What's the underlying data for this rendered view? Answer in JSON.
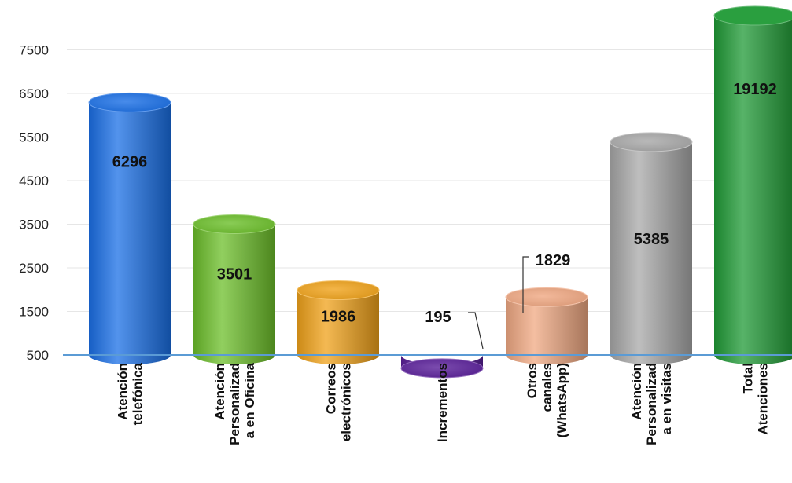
{
  "chart_data": {
    "type": "bar",
    "title": "",
    "xlabel": "",
    "ylabel": "",
    "ylim": [
      500,
      8300
    ],
    "yticks": [
      500,
      1500,
      2500,
      3500,
      4500,
      5500,
      6500,
      7500
    ],
    "ytick_labels": [
      "500",
      "1500",
      "2500",
      "3500",
      "4500",
      "5500",
      "6500",
      "7500"
    ],
    "grid": true,
    "legend": "none",
    "bar_shape": "cylinder",
    "categories": [
      [
        "Atención",
        "telefónica"
      ],
      [
        "Atención",
        "Personalizad",
        "a en Oficina"
      ],
      [
        "Correos",
        "electrónicos"
      ],
      [
        "Incrementos"
      ],
      [
        "Otros",
        "canales",
        "(WhatsApp)"
      ],
      [
        "Atención",
        "Personalizad",
        "a en visitas"
      ],
      [
        "Total",
        "Atenciones"
      ]
    ],
    "values": [
      6296,
      3501,
      1986,
      195,
      1829,
      5385,
      19192
    ],
    "data_labels": [
      "6296",
      "3501",
      "1986",
      "195",
      "1829",
      "5385",
      "19192"
    ],
    "colors": [
      "#1a6fe6",
      "#6cbf2a",
      "#f0a21a",
      "#5a1f9a",
      "#f0a882",
      "#a8a8a8",
      "#1f9a35"
    ],
    "axis_color": "#5b9bd5"
  }
}
